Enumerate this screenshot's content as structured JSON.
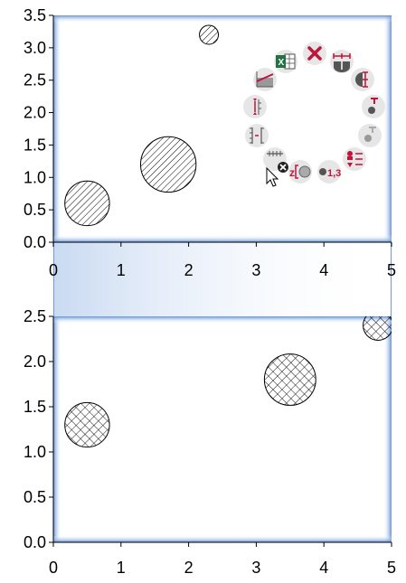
{
  "chart_data": [
    {
      "type": "bubble",
      "xlim": [
        0,
        5
      ],
      "ylim": [
        0,
        3.5
      ],
      "x_ticks": [
        "0",
        "1",
        "2",
        "3",
        "4",
        "5"
      ],
      "y_ticks": [
        "0.0",
        "0.5",
        "1.0",
        "1.5",
        "2.0",
        "2.5",
        "3.0",
        "3.5"
      ],
      "grid": false,
      "fill_pattern": "diagonal-hatch",
      "points": [
        {
          "x": 0.5,
          "y": 0.6,
          "r": 0.33
        },
        {
          "x": 1.7,
          "y": 1.2,
          "r": 0.41
        },
        {
          "x": 2.3,
          "y": 3.2,
          "r": 0.14
        }
      ]
    },
    {
      "type": "bubble",
      "xlim": [
        0,
        5
      ],
      "ylim": [
        0,
        2.5
      ],
      "x_ticks": [
        "0",
        "1",
        "2",
        "3",
        "4",
        "5"
      ],
      "y_ticks": [
        "0.0",
        "0.5",
        "1.0",
        "1.5",
        "2.0",
        "2.5"
      ],
      "grid": false,
      "fill_pattern": "crosshatch",
      "points": [
        {
          "x": 0.5,
          "y": 1.3,
          "r": 0.33
        },
        {
          "x": 3.5,
          "y": 1.8,
          "r": 0.38
        },
        {
          "x": 4.8,
          "y": 2.4,
          "r": 0.22
        }
      ]
    }
  ],
  "radial_menu": {
    "accent": "#c0143c",
    "excel_green": "#217346",
    "items": [
      {
        "name": "close-menu",
        "icon": "close-icon"
      },
      {
        "name": "horizontal-error-bars",
        "icon": "horizontal-error-bar-icon"
      },
      {
        "name": "vertical-error-bars",
        "icon": "vertical-error-bar-icon"
      },
      {
        "name": "label-above",
        "icon": "label-above-icon"
      },
      {
        "name": "label-below",
        "icon": "label-below-icon"
      },
      {
        "name": "legend-entries",
        "icon": "legend-icon"
      },
      {
        "name": "point-value-label",
        "icon": "point-label-icon",
        "text": "1,3"
      },
      {
        "name": "z-order",
        "icon": "z-order-icon",
        "text": "z"
      },
      {
        "name": "delete-point",
        "icon": "delete-point-icon"
      },
      {
        "name": "axis-break",
        "icon": "axis-break-icon"
      },
      {
        "name": "error-bar-cap",
        "icon": "error-bar-cap-icon"
      },
      {
        "name": "trendline",
        "icon": "trendline-icon"
      },
      {
        "name": "export-to-excel",
        "icon": "excel-icon",
        "text": "X"
      }
    ]
  }
}
